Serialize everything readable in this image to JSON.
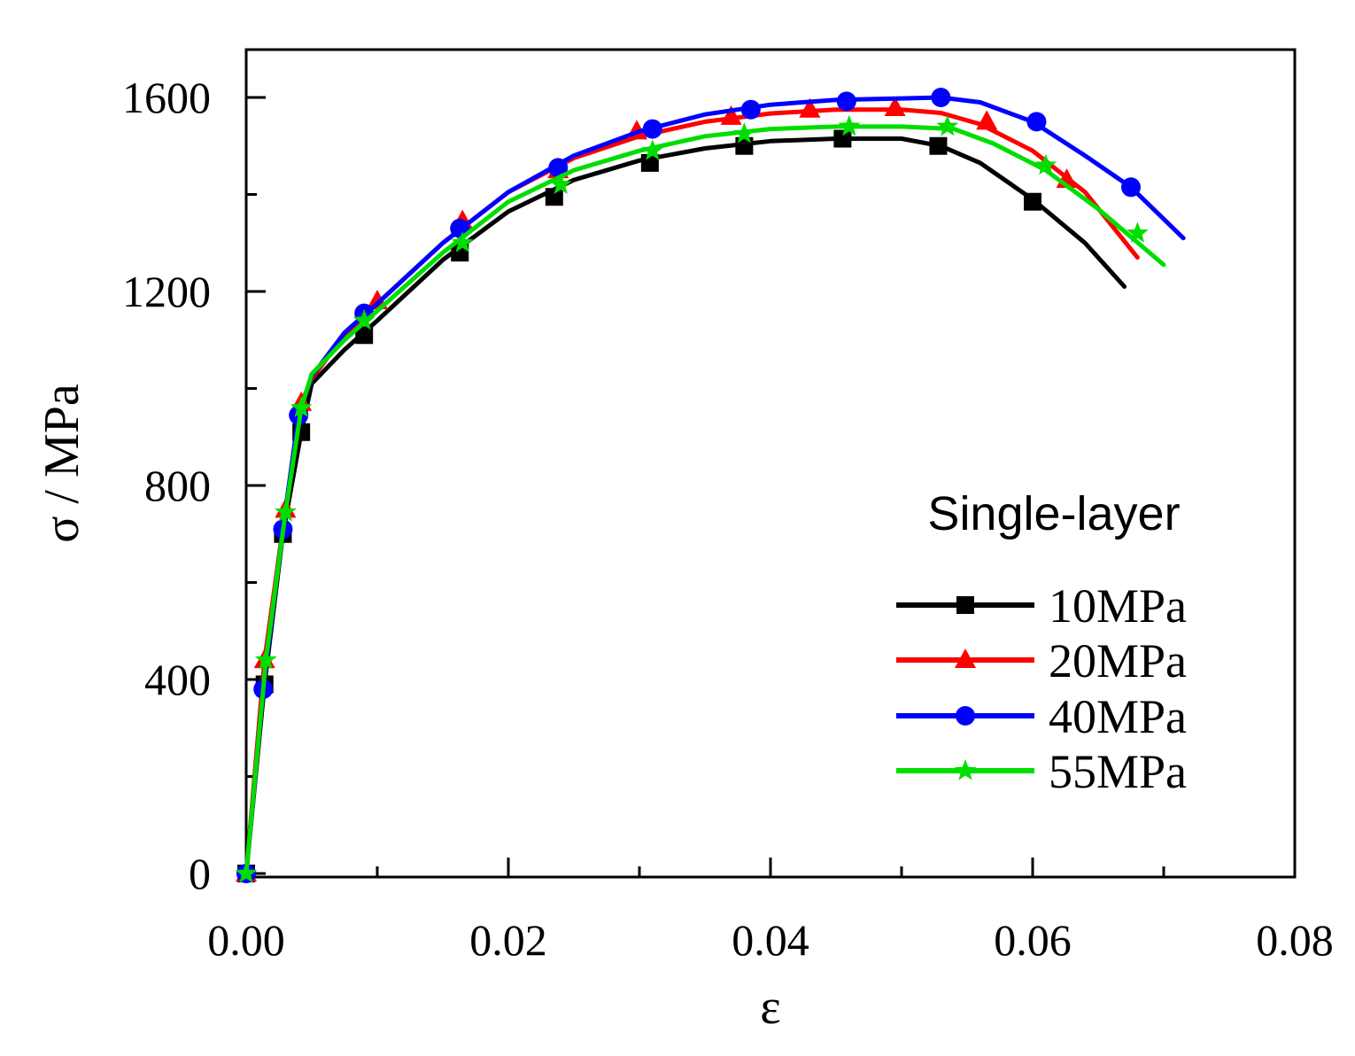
{
  "chart_data": {
    "type": "line",
    "title": "",
    "xlabel": "ε",
    "ylabel": "σ / MPa",
    "xlim": [
      0,
      0.08
    ],
    "ylim": [
      0,
      1700
    ],
    "xticks": [
      0.0,
      0.02,
      0.04,
      0.06,
      0.08
    ],
    "xtick_labels": [
      "0.00",
      "0.02",
      "0.04",
      "0.06",
      "0.08"
    ],
    "yticks": [
      0,
      400,
      800,
      1200,
      1600
    ],
    "ytick_labels": [
      "0",
      "400",
      "800",
      "1200",
      "1600"
    ],
    "legend_title": "Single-layer",
    "legend_position": "center-right",
    "series": [
      {
        "name": "10MPa",
        "color": "#000000",
        "marker": "square",
        "x": [
          0.0,
          0.0014,
          0.0028,
          0.0042,
          0.005,
          0.0075,
          0.01,
          0.015,
          0.02,
          0.025,
          0.03,
          0.035,
          0.04,
          0.045,
          0.05,
          0.053,
          0.056,
          0.06,
          0.064,
          0.067
        ],
        "y": [
          0,
          390,
          700,
          910,
          1010,
          1080,
          1140,
          1265,
          1365,
          1430,
          1470,
          1495,
          1510,
          1515,
          1515,
          1500,
          1465,
          1390,
          1300,
          1210
        ],
        "marker_x": [
          0.0,
          0.0014,
          0.0028,
          0.0042,
          0.009,
          0.0163,
          0.0235,
          0.0308,
          0.038,
          0.0455,
          0.0528,
          0.06
        ],
        "marker_y": [
          0,
          390,
          700,
          910,
          1110,
          1280,
          1395,
          1465,
          1500,
          1515,
          1500,
          1385
        ]
      },
      {
        "name": "20MPa",
        "color": "#ff0000",
        "marker": "triangle",
        "x": [
          0.0,
          0.0014,
          0.003,
          0.0042,
          0.005,
          0.0075,
          0.01,
          0.015,
          0.02,
          0.025,
          0.03,
          0.035,
          0.04,
          0.045,
          0.05,
          0.053,
          0.056,
          0.06,
          0.064,
          0.068
        ],
        "y": [
          0,
          440,
          750,
          970,
          1020,
          1110,
          1175,
          1300,
          1405,
          1475,
          1520,
          1550,
          1567,
          1575,
          1575,
          1568,
          1545,
          1490,
          1405,
          1270
        ],
        "marker_x": [
          0.0,
          0.0014,
          0.003,
          0.0042,
          0.01,
          0.0165,
          0.0238,
          0.0298,
          0.037,
          0.043,
          0.0495,
          0.0565,
          0.0626
        ],
        "marker_y": [
          0,
          440,
          750,
          970,
          1180,
          1345,
          1450,
          1530,
          1560,
          1575,
          1578,
          1550,
          1430
        ]
      },
      {
        "name": "40MPa",
        "color": "#0000ff",
        "marker": "circle",
        "x": [
          0.0,
          0.0013,
          0.0028,
          0.004,
          0.005,
          0.0075,
          0.01,
          0.015,
          0.02,
          0.025,
          0.03,
          0.035,
          0.04,
          0.045,
          0.05,
          0.053,
          0.056,
          0.06,
          0.064,
          0.0675,
          0.0715
        ],
        "y": [
          0,
          380,
          710,
          945,
          1025,
          1115,
          1175,
          1300,
          1405,
          1480,
          1530,
          1565,
          1585,
          1595,
          1598,
          1600,
          1590,
          1550,
          1480,
          1415,
          1310
        ],
        "marker_x": [
          0.0,
          0.0013,
          0.0028,
          0.004,
          0.009,
          0.0163,
          0.0238,
          0.031,
          0.0385,
          0.0458,
          0.053,
          0.0603,
          0.0675
        ],
        "marker_y": [
          0,
          380,
          710,
          945,
          1155,
          1330,
          1455,
          1535,
          1575,
          1592,
          1600,
          1550,
          1415
        ]
      },
      {
        "name": "55MPa",
        "color": "#00dd00",
        "marker": "star",
        "x": [
          0.0,
          0.0015,
          0.003,
          0.0042,
          0.005,
          0.0075,
          0.01,
          0.015,
          0.02,
          0.025,
          0.03,
          0.035,
          0.04,
          0.045,
          0.05,
          0.054,
          0.057,
          0.061,
          0.065,
          0.07
        ],
        "y": [
          0,
          440,
          745,
          960,
          1030,
          1100,
          1160,
          1280,
          1385,
          1450,
          1490,
          1520,
          1535,
          1540,
          1540,
          1535,
          1505,
          1450,
          1370,
          1255
        ],
        "marker_x": [
          0.0,
          0.0015,
          0.003,
          0.0042,
          0.009,
          0.0165,
          0.024,
          0.031,
          0.038,
          0.046,
          0.0535,
          0.061,
          0.068
        ],
        "marker_y": [
          0,
          440,
          745,
          960,
          1140,
          1300,
          1420,
          1490,
          1525,
          1540,
          1540,
          1460,
          1320
        ]
      }
    ]
  }
}
